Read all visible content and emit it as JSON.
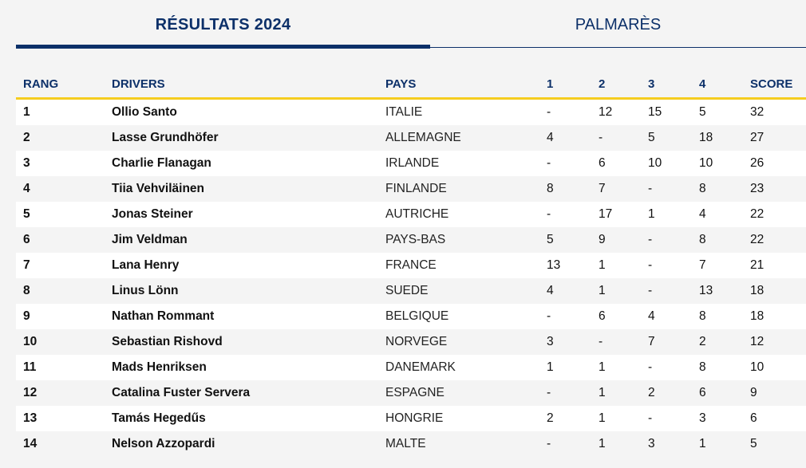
{
  "tabs": {
    "active_label": "RÉSULTATS 2024",
    "inactive_label": "PALMARÈS"
  },
  "table": {
    "headers": {
      "rang": "RANG",
      "drivers": "DRIVERS",
      "pays": "PAYS",
      "r1": "1",
      "r2": "2",
      "r3": "3",
      "r4": "4",
      "score": "SCORE"
    },
    "rows": [
      {
        "rang": "1",
        "driver": "Ollio Santo",
        "pays": "ITALIE",
        "r1": "-",
        "r2": "12",
        "r3": "15",
        "r4": "5",
        "score": "32"
      },
      {
        "rang": "2",
        "driver": "Lasse Grundhöfer",
        "pays": "ALLEMAGNE",
        "r1": "4",
        "r2": "-",
        "r3": "5",
        "r4": "18",
        "score": "27"
      },
      {
        "rang": "3",
        "driver": "Charlie Flanagan",
        "pays": "IRLANDE",
        "r1": "-",
        "r2": "6",
        "r3": "10",
        "r4": "10",
        "score": "26"
      },
      {
        "rang": "4",
        "driver": "Tiia Vehviläinen",
        "pays": "FINLANDE",
        "r1": "8",
        "r2": "7",
        "r3": "-",
        "r4": "8",
        "score": "23"
      },
      {
        "rang": "5",
        "driver": "Jonas Steiner",
        "pays": "AUTRICHE",
        "r1": "-",
        "r2": "17",
        "r3": "1",
        "r4": "4",
        "score": "22"
      },
      {
        "rang": "6",
        "driver": "Jim Veldman",
        "pays": "PAYS-BAS",
        "r1": "5",
        "r2": "9",
        "r3": "-",
        "r4": "8",
        "score": "22"
      },
      {
        "rang": "7",
        "driver": "Lana Henry",
        "pays": "FRANCE",
        "r1": "13",
        "r2": "1",
        "r3": "-",
        "r4": "7",
        "score": "21"
      },
      {
        "rang": "8",
        "driver": "Linus Lönn",
        "pays": "SUEDE",
        "r1": "4",
        "r2": "1",
        "r3": "-",
        "r4": "13",
        "score": "18"
      },
      {
        "rang": "9",
        "driver": "Nathan Rommant",
        "pays": "BELGIQUE",
        "r1": "-",
        "r2": "6",
        "r3": "4",
        "r4": "8",
        "score": "18"
      },
      {
        "rang": "10",
        "driver": "Sebastian Rishovd",
        "pays": "NORVEGE",
        "r1": "3",
        "r2": "-",
        "r3": "7",
        "r4": "2",
        "score": "12"
      },
      {
        "rang": "11",
        "driver": "Mads Henriksen",
        "pays": "DANEMARK",
        "r1": "1",
        "r2": "1",
        "r3": "-",
        "r4": "8",
        "score": "10"
      },
      {
        "rang": "12",
        "driver": "Catalina Fuster Servera",
        "pays": "ESPAGNE",
        "r1": "-",
        "r2": "1",
        "r3": "2",
        "r4": "6",
        "score": "9"
      },
      {
        "rang": "13",
        "driver": "Tamás Hegedűs",
        "pays": "HONGRIE",
        "r1": "2",
        "r2": "1",
        "r3": "-",
        "r4": "3",
        "score": "6"
      },
      {
        "rang": "14",
        "driver": "Nelson Azzopardi",
        "pays": "MALTE",
        "r1": "-",
        "r2": "1",
        "r3": "3",
        "r4": "1",
        "score": "5"
      }
    ]
  },
  "colors": {
    "brand_navy": "#0c3069",
    "accent_yellow": "#f5cd1f"
  }
}
